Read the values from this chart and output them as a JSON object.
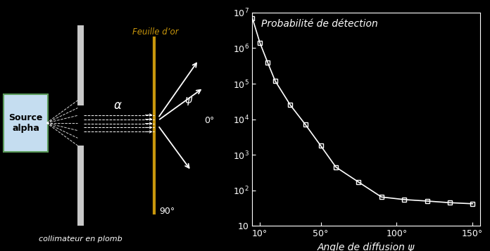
{
  "bg_color": "#000000",
  "graph": {
    "x_data": [
      5,
      10,
      15,
      20,
      30,
      40,
      50,
      60,
      75,
      90,
      105,
      120,
      135,
      150
    ],
    "y_data": [
      7000000.0,
      1400000.0,
      400000.0,
      120000.0,
      25000.0,
      7000,
      1800,
      450,
      170,
      65,
      55,
      50,
      45,
      42
    ],
    "x_label": "Angle de diffusion ψ",
    "y_label": "Probabilité de détection",
    "x_ticks": [
      10,
      50,
      100,
      150
    ],
    "x_tick_labels": [
      "10°",
      "50°",
      "100°",
      "150°"
    ],
    "y_lim": [
      10,
      10000000.0
    ],
    "x_lim": [
      5,
      155
    ],
    "line_color": "#ffffff",
    "marker_fc": "none",
    "marker_ec": "#ffffff",
    "marker_size": 5
  },
  "diagram": {
    "source_box_text": "Source\nalpha",
    "source_box_color": "#c5ddf0",
    "source_box_edge": "#5a9a5a",
    "collimator_color": "#c8c8c8",
    "gold_foil_color": "#c8960c",
    "label_feuille": "Feuille d’or",
    "label_collimateur": "collimateur en plomb",
    "label_alpha": "α",
    "label_psi": "ψ",
    "label_0deg": "0°",
    "label_90deg": "90°",
    "text_color": "#ffffff"
  }
}
